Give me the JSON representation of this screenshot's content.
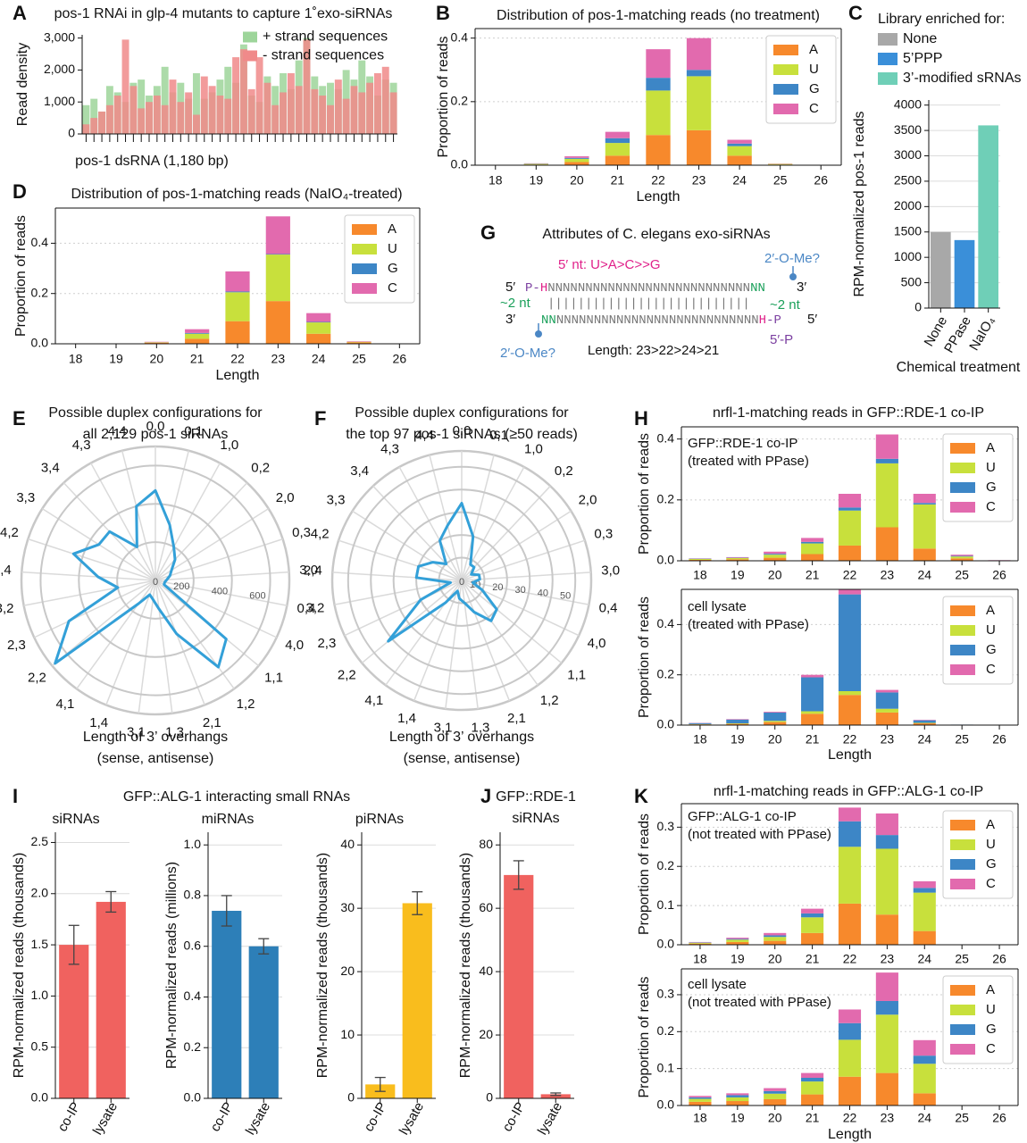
{
  "chart_data": [
    {
      "type": "bar",
      "panel": "A",
      "title": "pos-1 RNAi in glp-4 mutants to capture 1˚exo-siRNAs",
      "xlabel": "pos-1 dsRNA (1,180 bp)",
      "ylabel": "Read density",
      "categories": [
        null,
        null,
        null,
        null,
        null,
        null,
        null,
        null,
        null,
        null,
        null,
        null,
        null,
        null,
        null,
        null,
        null,
        null,
        null,
        null,
        null,
        null,
        null,
        null,
        null,
        null,
        null,
        null,
        null,
        null,
        null,
        null,
        null,
        null,
        null,
        null,
        null,
        null,
        null,
        null
      ],
      "series": [
        {
          "name": "+ strand sequences",
          "color": "#9dd59a",
          "values": [
            900,
            1100,
            700,
            1500,
            1300,
            1000,
            1600,
            1700,
            1200,
            1500,
            2100,
            1300,
            1600,
            1100,
            1900,
            1100,
            1300,
            1700,
            2100,
            1600,
            2800,
            1200,
            1000,
            1800,
            1500,
            1900,
            1400,
            2300,
            3000,
            1800,
            1500,
            1600,
            1400,
            2000,
            1700,
            2300,
            1800,
            1200,
            1700,
            1600
          ]
        },
        {
          "name": "- strand sequences",
          "color": "#f08a8a",
          "values": [
            300,
            500,
            700,
            900,
            1200,
            2950,
            1500,
            800,
            1000,
            1200,
            900,
            1700,
            1000,
            1300,
            600,
            1800,
            1500,
            1200,
            1100,
            2400,
            2650,
            1400,
            2400,
            1600,
            900,
            1300,
            1900,
            1500,
            2950,
            1400,
            1200,
            900,
            1700,
            1100,
            1500,
            1300,
            1600,
            1900,
            2100,
            1300
          ]
        }
      ],
      "ylim": [
        0,
        3100
      ],
      "yticks": [
        0,
        {
          "value": 1000,
          "label": "1,000"
        },
        {
          "value": 2000,
          "label": "2,000"
        },
        {
          "value": 3000,
          "label": "3,000"
        }
      ],
      "legend": "upper right",
      "grid": false
    },
    {
      "type": "bar",
      "stacked": true,
      "panel": "B",
      "title": "Distribution of pos-1-matching reads (no treatment)",
      "xlabel": "Length",
      "ylabel": "Proportion of reads",
      "categories": [
        "18",
        "19",
        "20",
        "21",
        "22",
        "23",
        "24",
        "25",
        "26"
      ],
      "series": [
        {
          "name": "A",
          "color": "#f7892c",
          "values": [
            0,
            0.002,
            0.01,
            0.03,
            0.095,
            0.11,
            0.03,
            0.002,
            0
          ]
        },
        {
          "name": "U",
          "color": "#c8e03c",
          "values": [
            0,
            0.002,
            0.01,
            0.04,
            0.14,
            0.17,
            0.03,
            0.002,
            0
          ]
        },
        {
          "name": "G",
          "color": "#3d86c6",
          "values": [
            0,
            0.001,
            0.003,
            0.015,
            0.04,
            0.02,
            0.008,
            0,
            0
          ]
        },
        {
          "name": "C",
          "color": "#e26aae",
          "values": [
            0.001,
            0.001,
            0.005,
            0.02,
            0.09,
            0.1,
            0.012,
            0.001,
            0
          ]
        }
      ],
      "ylim": [
        0,
        0.43
      ],
      "yticks": [
        {
          "value": 0,
          "label": "0.0"
        },
        0.2,
        0.4
      ],
      "legend": "upper right",
      "grid": true
    },
    {
      "type": "bar",
      "panel": "C",
      "legend_title": "Library enriched for:",
      "legend_labels": [
        "None",
        "5’PPP",
        "3’-modified sRNAs"
      ],
      "xlabel": "Chemical treatment",
      "ylabel": "RPM-normalized pos-1 reads",
      "categories": [
        "None",
        "PPase",
        "NaIO₄"
      ],
      "values": [
        1500,
        1340,
        3600
      ],
      "colors": [
        "#a8a8a8",
        "#3a8fd9",
        "#6fcfb7"
      ],
      "xtick_rotation": 60,
      "ylim": [
        0,
        4100
      ],
      "yticks": [
        0,
        500,
        1000,
        1500,
        2000,
        2500,
        3000,
        3500,
        4000
      ],
      "grid": true
    },
    {
      "type": "bar",
      "stacked": true,
      "panel": "D",
      "title": "Distribution of pos-1-matching reads (NaIO₄-treated)",
      "xlabel": "Length",
      "ylabel": "Proportion of reads",
      "categories": [
        "18",
        "19",
        "20",
        "21",
        "22",
        "23",
        "24",
        "25",
        "26"
      ],
      "series": [
        {
          "name": "A",
          "color": "#f7892c",
          "values": [
            0,
            0,
            0.004,
            0.02,
            0.09,
            0.17,
            0.04,
            0.006,
            0
          ]
        },
        {
          "name": "U",
          "color": "#c8e03c",
          "values": [
            0,
            0,
            0.002,
            0.02,
            0.115,
            0.185,
            0.045,
            0.002,
            0
          ]
        },
        {
          "name": "G",
          "color": "#3d86c6",
          "values": [
            0,
            0,
            0,
            0.003,
            0.003,
            0.002,
            0.002,
            0,
            0
          ]
        },
        {
          "name": "C",
          "color": "#e26aae",
          "values": [
            0,
            0,
            0.002,
            0.015,
            0.08,
            0.15,
            0.035,
            0.002,
            0
          ]
        }
      ],
      "ylim": [
        0,
        0.54
      ],
      "yticks": [
        {
          "value": 0,
          "label": "0.0"
        },
        0.2,
        0.4
      ],
      "legend": "upper right",
      "grid": true
    },
    {
      "type": "radar",
      "panel": "E",
      "title": [
        "Possible duplex configurations for",
        "all 2,129 pos-1 siRNAs"
      ],
      "xlabel": [
        "Length of 3’ overhangs",
        "(sense, antisense)"
      ],
      "categories": [
        "0,0",
        "0,1",
        "1,0",
        "0,2",
        "2,0",
        "0,3",
        "3,0",
        "0,4",
        "4,0",
        "1,1",
        "1,2",
        "2,1",
        "1,3",
        "3,1",
        "1,4",
        "4,1",
        "2,2",
        "2,3",
        "3,2",
        "2,4",
        "4,2",
        "3,3",
        "3,4",
        "4,3",
        "4,4"
      ],
      "values": [
        470,
        300,
        200,
        150,
        100,
        80,
        60,
        50,
        50,
        480,
        560,
        300,
        150,
        100,
        80,
        150,
        680,
        500,
        200,
        300,
        450,
        350,
        350,
        200,
        400
      ],
      "color": "#33a0d8",
      "rlim": [
        0,
        700
      ],
      "rticks": [
        0,
        200,
        400,
        600
      ]
    },
    {
      "type": "radar",
      "panel": "F",
      "title": [
        "Possible duplex configurations for",
        "the top 97 pos-1 siRNAs (≥50 reads)"
      ],
      "xlabel": [
        "Length of 3’ overhangs",
        "(sense, antisense)"
      ],
      "categories": [
        "0,0",
        "0,1",
        "1,0",
        "0,2",
        "2,0",
        "0,3",
        "3,0",
        "0,4",
        "4,0",
        "1,1",
        "1,2",
        "2,1",
        "1,3",
        "3,1",
        "1,4",
        "4,1",
        "2,2",
        "2,3",
        "3,2",
        "2,4",
        "4,2",
        "3,3",
        "3,4",
        "4,3",
        "4,4"
      ],
      "values": [
        34,
        20,
        8,
        8,
        5,
        8,
        8,
        5,
        10,
        20,
        22,
        15,
        10,
        8,
        5,
        12,
        42,
        20,
        5,
        20,
        20,
        15,
        10,
        20,
        25
      ],
      "color": "#33a0d8",
      "rlim": [
        0,
        57
      ],
      "rticks": [
        0,
        10,
        20,
        30,
        40,
        50
      ]
    },
    {
      "type": "bar",
      "stacked": true,
      "panel": "H",
      "title": "nrfl-1-matching reads in GFP::RDE-1 co-IP",
      "annotation": [
        "GFP::RDE-1 co-IP",
        "(treated with PPase)"
      ],
      "ylabel": "Proportion of reads",
      "categories": [
        "18",
        "19",
        "20",
        "21",
        "22",
        "23",
        "24",
        "25",
        "26"
      ],
      "series": [
        {
          "name": "A",
          "color": "#f7892c",
          "values": [
            0.003,
            0.005,
            0.01,
            0.022,
            0.05,
            0.11,
            0.04,
            0.008,
            0.001
          ]
        },
        {
          "name": "U",
          "color": "#c8e03c",
          "values": [
            0.003,
            0.004,
            0.01,
            0.035,
            0.115,
            0.21,
            0.145,
            0.006,
            0
          ]
        },
        {
          "name": "G",
          "color": "#3d86c6",
          "values": [
            0.001,
            0.001,
            0.003,
            0.005,
            0.01,
            0.015,
            0.005,
            0.002,
            0
          ]
        },
        {
          "name": "C",
          "color": "#e26aae",
          "values": [
            0.001,
            0.002,
            0.007,
            0.013,
            0.045,
            0.08,
            0.03,
            0.004,
            0.001
          ]
        }
      ],
      "ylim": [
        0,
        0.44
      ],
      "yticks": [
        {
          "value": 0,
          "label": "0.0"
        },
        0.2,
        0.4
      ],
      "legend": "upper right",
      "grid": true
    },
    {
      "type": "bar",
      "stacked": true,
      "annotation": [
        "cell lysate",
        "(treated with PPase)"
      ],
      "xlabel": "Length",
      "ylabel": "Proportion of reads",
      "categories": [
        "18",
        "19",
        "20",
        "21",
        "22",
        "23",
        "24",
        "25",
        "26"
      ],
      "series": [
        {
          "name": "A",
          "color": "#f7892c",
          "values": [
            0.003,
            0.005,
            0.012,
            0.045,
            0.12,
            0.05,
            0.007,
            0.001,
            0
          ]
        },
        {
          "name": "U",
          "color": "#c8e03c",
          "values": [
            0.001,
            0.002,
            0.005,
            0.01,
            0.015,
            0.015,
            0.002,
            0,
            0
          ]
        },
        {
          "name": "G",
          "color": "#3d86c6",
          "values": [
            0.004,
            0.015,
            0.033,
            0.135,
            0.385,
            0.065,
            0.01,
            0.001,
            0
          ]
        },
        {
          "name": "C",
          "color": "#e26aae",
          "values": [
            0.001,
            0.002,
            0.003,
            0.01,
            0.02,
            0.01,
            0.002,
            0,
            0
          ]
        }
      ],
      "ylim": [
        0,
        0.54
      ],
      "yticks": [
        {
          "value": 0,
          "label": "0.0"
        },
        0.2,
        0.4
      ],
      "legend": "upper right",
      "grid": true
    },
    {
      "type": "bar",
      "panel": "I",
      "suptitle": "GFP::ALG-1 interacting small RNAs",
      "title": "siRNAs",
      "ylabel": "RPM-normalized reads (thousands)",
      "categories": [
        "co-IP",
        "lysate"
      ],
      "values": [
        1.5,
        1.92
      ],
      "errors": [
        0.19,
        0.1
      ],
      "color": "#f0625f",
      "xtick_rotation": 60,
      "ylim": [
        0,
        2.6
      ],
      "yticks": [
        {
          "value": 0,
          "label": "0.0"
        },
        0.5,
        {
          "value": 1,
          "label": "1.0"
        },
        1.5,
        {
          "value": 2,
          "label": "2.0"
        },
        2.5
      ],
      "grid": true
    },
    {
      "type": "bar",
      "title": "miRNAs",
      "ylabel": "RPM-normalized reads (millions)",
      "categories": [
        "co-IP",
        "lysate"
      ],
      "values": [
        0.74,
        0.6
      ],
      "errors": [
        0.06,
        0.03
      ],
      "color": "#2d7fb8",
      "xtick_rotation": 60,
      "ylim": [
        0,
        1.05
      ],
      "yticks": [
        {
          "value": 0,
          "label": "0.0"
        },
        0.2,
        0.4,
        0.6,
        0.8,
        {
          "value": 1,
          "label": "1.0"
        }
      ],
      "grid": true
    },
    {
      "type": "bar",
      "title": "piRNAs",
      "ylabel": "RPM-normalized reads (thousands)",
      "categories": [
        "co-IP",
        "lysate"
      ],
      "values": [
        2.2,
        30.8
      ],
      "errors": [
        1.1,
        1.8
      ],
      "color": "#f9bd1d",
      "xtick_rotation": 60,
      "ylim": [
        0,
        42
      ],
      "yticks": [
        0,
        10,
        20,
        30,
        40
      ],
      "grid": true
    },
    {
      "type": "bar",
      "panel": "J",
      "title": [
        "GFP::RDE-1",
        "siRNAs"
      ],
      "ylabel": "RPM-normalized reads (thousands)",
      "categories": [
        "co-IP",
        "lysate"
      ],
      "values": [
        70.5,
        1.3
      ],
      "errors": [
        4.5,
        0.4
      ],
      "color": "#f0625f",
      "xtick_rotation": 60,
      "ylim": [
        0,
        84
      ],
      "yticks": [
        0,
        20,
        40,
        60,
        80
      ],
      "grid": true
    },
    {
      "type": "bar",
      "stacked": true,
      "panel": "K",
      "title": "nrfl-1-matching reads in GFP::ALG-1 co-IP",
      "annotation": [
        "GFP::ALG-1 co-IP",
        "(not treated with PPase)"
      ],
      "ylabel": "Proportion of reads",
      "categories": [
        "18",
        "19",
        "20",
        "21",
        "22",
        "23",
        "24",
        "25",
        "26"
      ],
      "series": [
        {
          "name": "A",
          "color": "#f7892c",
          "values": [
            0.003,
            0.007,
            0.01,
            0.03,
            0.105,
            0.077,
            0.035,
            0,
            0
          ]
        },
        {
          "name": "U",
          "color": "#c8e03c",
          "values": [
            0.002,
            0.006,
            0.01,
            0.04,
            0.145,
            0.168,
            0.098,
            0,
            0
          ]
        },
        {
          "name": "G",
          "color": "#3d86c6",
          "values": [
            0.001,
            0.002,
            0.004,
            0.01,
            0.065,
            0.035,
            0.012,
            0,
            0
          ]
        },
        {
          "name": "C",
          "color": "#e26aae",
          "values": [
            0.001,
            0.003,
            0.006,
            0.012,
            0.035,
            0.055,
            0.017,
            0,
            0
          ]
        }
      ],
      "ylim": [
        0,
        0.36
      ],
      "yticks": [
        {
          "value": 0,
          "label": "0.0"
        },
        0.1,
        0.2,
        0.3
      ],
      "legend": "upper right",
      "grid": true
    },
    {
      "type": "bar",
      "stacked": true,
      "annotation": [
        "cell lysate",
        "(not treated with PPase)"
      ],
      "xlabel": "Length",
      "ylabel": "Proportion of reads",
      "categories": [
        "18",
        "19",
        "20",
        "21",
        "22",
        "23",
        "24",
        "25",
        "26"
      ],
      "series": [
        {
          "name": "A",
          "color": "#f7892c",
          "values": [
            0.01,
            0.012,
            0.017,
            0.03,
            0.078,
            0.088,
            0.033,
            0,
            0
          ]
        },
        {
          "name": "U",
          "color": "#c8e03c",
          "values": [
            0.008,
            0.01,
            0.015,
            0.035,
            0.1,
            0.158,
            0.08,
            0,
            0
          ]
        },
        {
          "name": "G",
          "color": "#3d86c6",
          "values": [
            0.004,
            0.006,
            0.007,
            0.01,
            0.045,
            0.037,
            0.022,
            0,
            0
          ]
        },
        {
          "name": "C",
          "color": "#e26aae",
          "values": [
            0.004,
            0.005,
            0.008,
            0.013,
            0.037,
            0.077,
            0.042,
            0,
            0
          ]
        }
      ],
      "ylim": [
        0,
        0.37
      ],
      "yticks": [
        {
          "value": 0,
          "label": "0.0"
        },
        0.1,
        0.2,
        0.3
      ],
      "legend": "upper right",
      "grid": true
    }
  ],
  "diagram": {
    "panel": "G",
    "title": "Attributes of C. elegans exo-siRNAs",
    "nt_preference": "5′ nt: U>A>C>>G",
    "methyl": [
      "2′-O-Me?",
      "2′-O-Me?"
    ],
    "overhang": [
      "~2 nt",
      "~2 nt"
    ],
    "ends": [
      "5′",
      "3′",
      "3′",
      "5′"
    ],
    "top_strand": [
      "P-",
      "H",
      "NNNNNNNNNNNNNNNNNNNNNNNNNNN",
      "NN"
    ],
    "pairs": "|||||||||||||||||||||||||||",
    "bottom_strand": [
      "NN",
      "NNNNNNNNNNNNNNNNNNNNNNNNNNN",
      "H",
      "-P"
    ],
    "five_p": "5′-P",
    "length": "Length: 23>22>24>21"
  }
}
